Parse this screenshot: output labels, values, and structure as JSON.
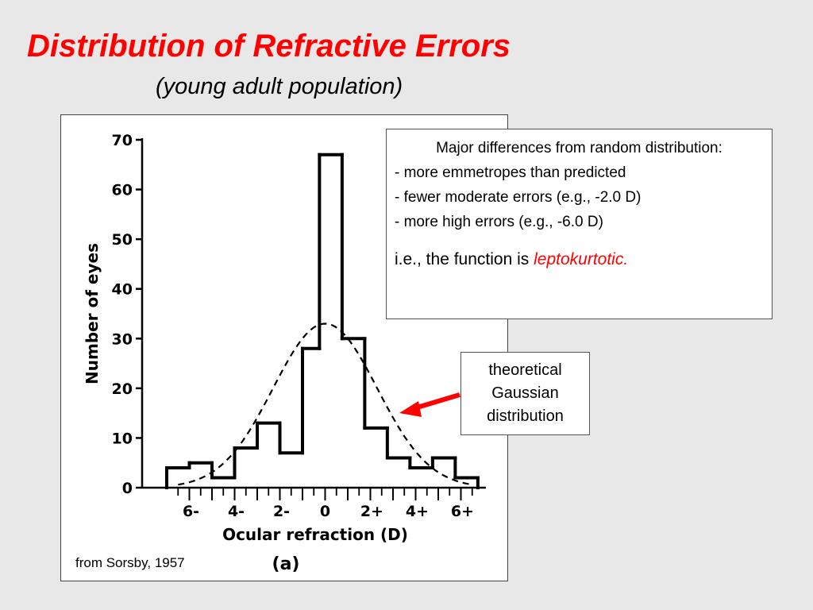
{
  "slide": {
    "title": "Distribution of Refractive Errors",
    "subtitle": "(young adult population)"
  },
  "notes": {
    "heading": "Major differences from random distribution:",
    "points": [
      "- more emmetropes than predicted",
      "- fewer moderate errors (e.g., -2.0 D)",
      "- more high errors (e.g., -6.0 D)"
    ],
    "conclusion_prefix": "i.e., the function is ",
    "conclusion_highlight": "leptokurtotic."
  },
  "gaussian_label": [
    "theoretical",
    "Gaussian",
    "distribution"
  ],
  "source": "from Sorsby, 1957",
  "colors": {
    "title": "#ff0000",
    "arrow": "#ff0000",
    "highlight": "#ff0000",
    "background": "#e8e8e8"
  },
  "chart_data": {
    "type": "bar",
    "subtype": "histogram-step",
    "xlabel": "Ocular refraction (D)",
    "ylabel": "Number of eyes",
    "panel_label": "(a)",
    "xlim": [
      -7,
      7
    ],
    "ylim": [
      0,
      70
    ],
    "yticks": [
      0,
      10,
      20,
      30,
      40,
      50,
      60,
      70
    ],
    "xtick_labels": [
      {
        "x": -6,
        "label": "6-"
      },
      {
        "x": -4,
        "label": "4-"
      },
      {
        "x": -2,
        "label": "2-"
      },
      {
        "x": 0,
        "label": "0"
      },
      {
        "x": 2,
        "label": "2+"
      },
      {
        "x": 4,
        "label": "4+"
      },
      {
        "x": 6,
        "label": "6+"
      }
    ],
    "bins": [
      {
        "from": -7.0,
        "to": -6.0,
        "value": 4
      },
      {
        "from": -6.0,
        "to": -5.0,
        "value": 5
      },
      {
        "from": -5.0,
        "to": -4.0,
        "value": 2
      },
      {
        "from": -4.0,
        "to": -3.0,
        "value": 8
      },
      {
        "from": -3.0,
        "to": -2.0,
        "value": 13
      },
      {
        "from": -2.0,
        "to": -1.0,
        "value": 7
      },
      {
        "from": -1.0,
        "to": -0.25,
        "value": 28
      },
      {
        "from": -0.25,
        "to": 0.75,
        "value": 67
      },
      {
        "from": 0.75,
        "to": 1.75,
        "value": 30
      },
      {
        "from": 1.75,
        "to": 2.75,
        "value": 12
      },
      {
        "from": 2.75,
        "to": 3.75,
        "value": 6
      },
      {
        "from": 3.75,
        "to": 4.75,
        "value": 4
      },
      {
        "from": 4.75,
        "to": 5.75,
        "value": 6
      },
      {
        "from": 5.75,
        "to": 6.75,
        "value": 2
      }
    ],
    "gaussian": {
      "mean": 0,
      "sd": 2.3,
      "peak": 33,
      "style": "dashed"
    },
    "grid": false
  }
}
